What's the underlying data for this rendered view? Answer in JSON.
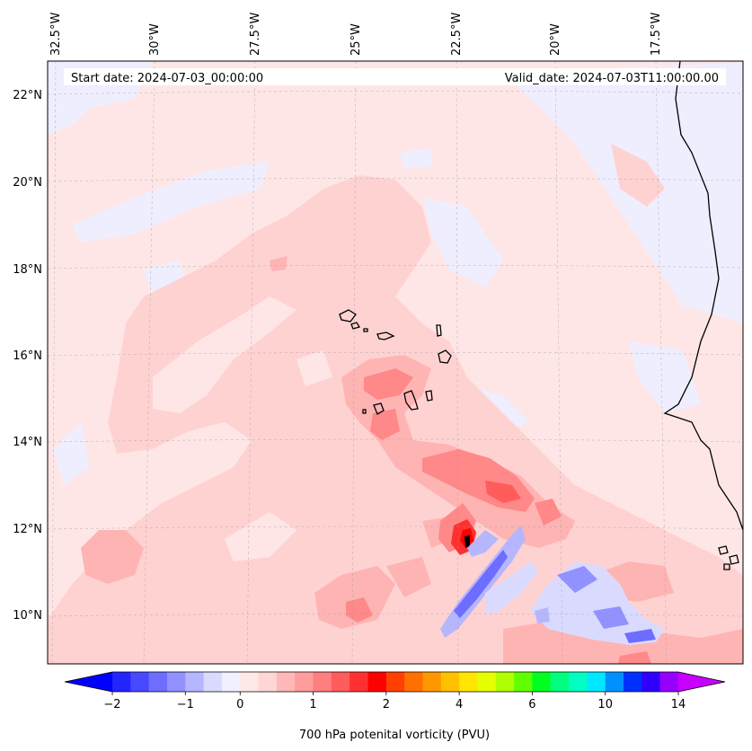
{
  "header": {
    "start_date": "Start date: 2024-07-03_00:00:00",
    "valid_date": "Valid_date: 2024-07-03T11:00:00.00"
  },
  "map": {
    "lon_labels": [
      "32.5°W",
      "30°W",
      "27.5°W",
      "25°W",
      "22.5°W",
      "20°W",
      "17.5°W"
    ],
    "lat_labels": [
      "22°N",
      "20°N",
      "18°N",
      "16°N",
      "14°N",
      "12°N",
      "10°N"
    ],
    "extent": {
      "lon_min": -32.7,
      "lon_max": -15.2,
      "lat_min": 8.9,
      "lat_max": 22.8
    }
  },
  "colorbar": {
    "label": "700 hPa potenital vorticity (PVU)",
    "tick_labels": [
      "−2",
      "−1",
      "0",
      "1",
      "2",
      "4",
      "6",
      "10",
      "14"
    ],
    "tick_values": [
      -2,
      -1,
      0,
      1,
      2,
      4,
      6,
      10,
      14
    ],
    "colors": [
      "#2424ff",
      "#4848ff",
      "#6d6dff",
      "#9191ff",
      "#b6b6ff",
      "#dadaff",
      "#f0f0ff",
      "#ffe8e8",
      "#ffd6d6",
      "#ffb8b8",
      "#ff9c9c",
      "#ff7e7e",
      "#ff5c5c",
      "#ff3030",
      "#ff0000",
      "#ff4000",
      "#ff7000",
      "#ff9800",
      "#ffc000",
      "#ffe600",
      "#e6ff00",
      "#b0ff00",
      "#60ff00",
      "#00ff20",
      "#00ff80",
      "#00ffc0",
      "#00e8ff",
      "#0090ff",
      "#0030ff",
      "#3000ff",
      "#9600ff"
    ],
    "extend_low_color": "#0000ff",
    "extend_high_color": "#c800ff"
  }
}
